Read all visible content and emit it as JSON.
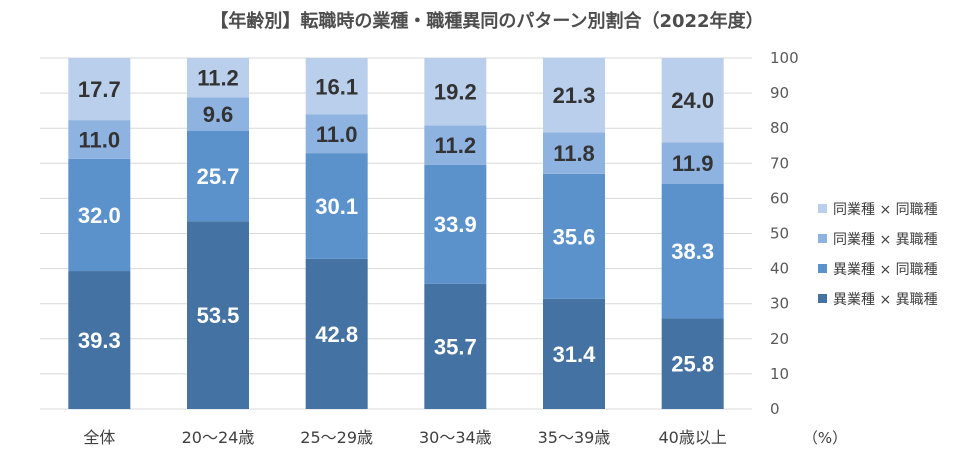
{
  "chart_data": {
    "type": "bar",
    "stacked": true,
    "title": "【年齢別】転職時の業種・職種異同のパターン別割合（2022年度）",
    "unit": "（%）",
    "ylim": [
      0,
      100
    ],
    "yticks": [
      0,
      10,
      20,
      30,
      40,
      50,
      60,
      70,
      80,
      90,
      100
    ],
    "y_axis_side": "right",
    "grid": true,
    "legend_position": "right",
    "categories": [
      "全体",
      "20～24歳",
      "25～29歳",
      "30～34歳",
      "35～39歳",
      "40歳以上"
    ],
    "series": [
      {
        "name": "異業種 × 異職種",
        "color": "#4472a2",
        "label_color": "#ffffff",
        "values": [
          39.3,
          53.5,
          42.8,
          35.7,
          31.4,
          25.8
        ]
      },
      {
        "name": "異業種 × 同職種",
        "color": "#5b92cc",
        "label_color": "#ffffff",
        "values": [
          32.0,
          25.7,
          30.1,
          33.9,
          35.6,
          38.3
        ]
      },
      {
        "name": "同業種 × 異職種",
        "color": "#8fb3e0",
        "label_color": "#333333",
        "values": [
          11.0,
          9.6,
          11.0,
          11.2,
          11.8,
          11.9
        ]
      },
      {
        "name": "同業種 × 同職種",
        "color": "#b9cfeb",
        "label_color": "#333333",
        "values": [
          17.7,
          11.2,
          16.1,
          19.2,
          21.3,
          24.0
        ]
      }
    ]
  }
}
